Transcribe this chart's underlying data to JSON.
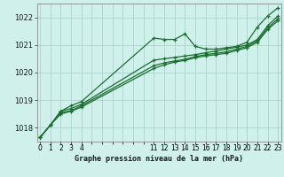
{
  "background_color": "#cff0eb",
  "grid_color": "#aad4cc",
  "line_color": "#1a6e2e",
  "title": "Graphe pression niveau de la mer (hPa)",
  "ylabel_ticks": [
    1018,
    1019,
    1020,
    1021,
    1022
  ],
  "xtick_positions": [
    0,
    1,
    2,
    3,
    4,
    5,
    6,
    7,
    8,
    9,
    10,
    11,
    12,
    13,
    14,
    15,
    16,
    17,
    18,
    19,
    20,
    21,
    22,
    23
  ],
  "xtick_labels": [
    "0",
    "1",
    "2",
    "3",
    "4",
    "",
    "",
    "",
    "",
    "",
    "",
    "11",
    "12",
    "13",
    "14",
    "15",
    "16",
    "17",
    "18",
    "19",
    "20",
    "21",
    "22",
    "23"
  ],
  "series": [
    {
      "x": [
        0,
        1,
        2,
        3,
        4,
        11,
        12,
        13,
        14,
        15,
        16,
        17,
        18,
        19,
        20,
        21,
        22,
        23
      ],
      "y": [
        1017.65,
        1018.1,
        1018.6,
        1018.8,
        1018.95,
        1021.25,
        1021.2,
        1021.2,
        1021.4,
        1020.95,
        1020.85,
        1020.85,
        1020.9,
        1020.95,
        1021.1,
        1021.65,
        1022.05,
        1022.35
      ]
    },
    {
      "x": [
        0,
        1,
        2,
        3,
        4,
        11,
        12,
        13,
        14,
        15,
        16,
        17,
        18,
        19,
        20,
        21,
        22,
        23
      ],
      "y": [
        1017.65,
        1018.1,
        1018.6,
        1018.7,
        1018.85,
        1020.45,
        1020.5,
        1020.55,
        1020.6,
        1020.65,
        1020.72,
        1020.78,
        1020.85,
        1020.92,
        1021.0,
        1021.2,
        1021.7,
        1022.05
      ]
    },
    {
      "x": [
        0,
        1,
        2,
        3,
        4,
        11,
        12,
        13,
        14,
        15,
        16,
        17,
        18,
        19,
        20,
        21,
        22,
        23
      ],
      "y": [
        1017.65,
        1018.1,
        1018.55,
        1018.62,
        1018.8,
        1020.25,
        1020.35,
        1020.42,
        1020.48,
        1020.58,
        1020.65,
        1020.7,
        1020.75,
        1020.85,
        1020.95,
        1021.15,
        1021.62,
        1021.95
      ]
    },
    {
      "x": [
        0,
        1,
        2,
        3,
        4,
        11,
        12,
        13,
        14,
        15,
        16,
        17,
        18,
        19,
        20,
        21,
        22,
        23
      ],
      "y": [
        1017.65,
        1018.1,
        1018.5,
        1018.6,
        1018.75,
        1020.15,
        1020.28,
        1020.38,
        1020.44,
        1020.54,
        1020.6,
        1020.65,
        1020.7,
        1020.8,
        1020.9,
        1021.1,
        1021.56,
        1021.88
      ]
    }
  ],
  "xlim": [
    -0.3,
    23.3
  ],
  "ylim": [
    1017.5,
    1022.5
  ],
  "figsize": [
    3.2,
    2.0
  ],
  "dpi": 100
}
